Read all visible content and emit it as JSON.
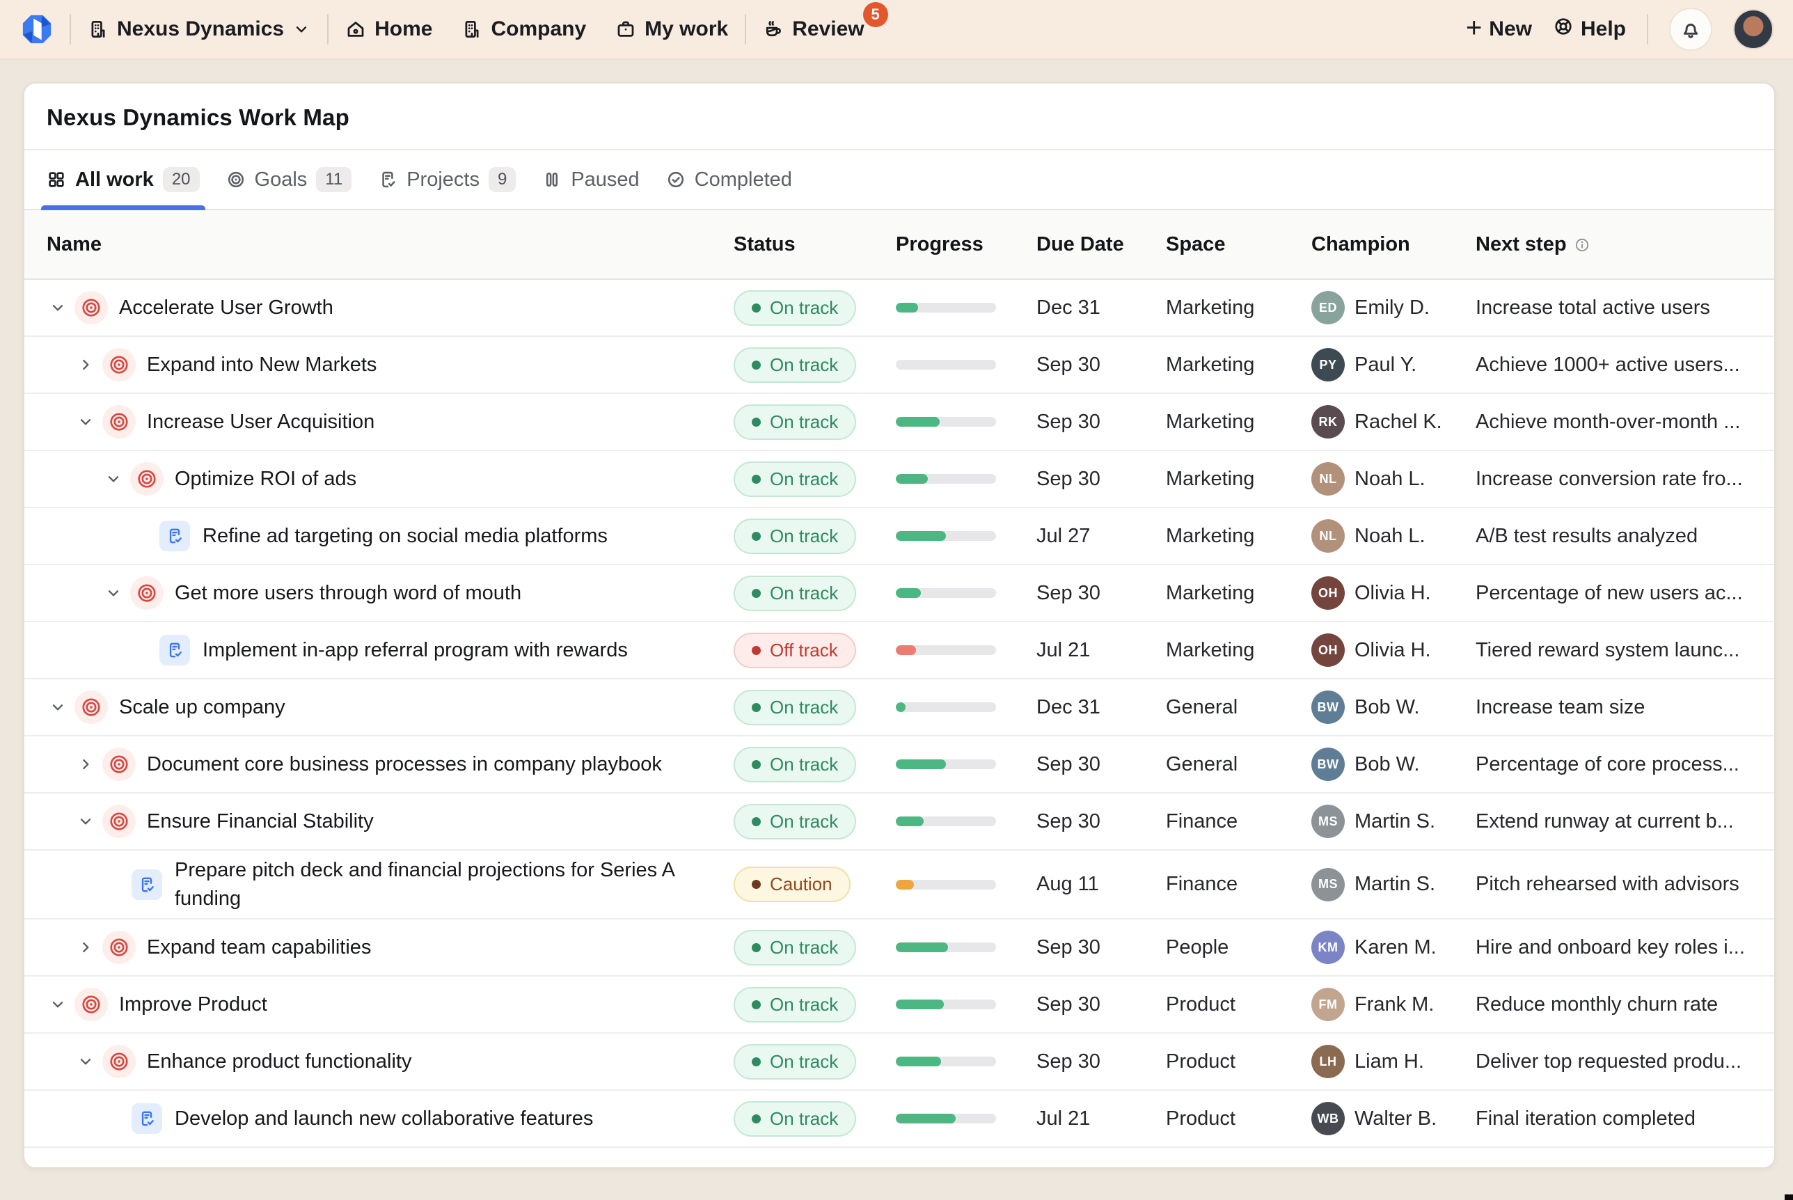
{
  "nav": {
    "brand": "Nexus Dynamics",
    "items": [
      {
        "label": "Home",
        "icon": "home-icon"
      },
      {
        "label": "Company",
        "icon": "building-icon"
      },
      {
        "label": "My work",
        "icon": "briefcase-icon"
      }
    ],
    "review": {
      "label": "Review",
      "badge": "5",
      "icon": "coffee-icon"
    },
    "new_label": "New",
    "help_label": "Help"
  },
  "page": {
    "title": "Nexus Dynamics Work Map"
  },
  "tabs": [
    {
      "label": "All work",
      "count": "20",
      "icon": "grid-icon",
      "active": true
    },
    {
      "label": "Goals",
      "count": "11",
      "icon": "target-icon",
      "active": false
    },
    {
      "label": "Projects",
      "count": "9",
      "icon": "clipboard-icon",
      "active": false
    },
    {
      "label": "Paused",
      "count": null,
      "icon": "pause-icon",
      "active": false
    },
    {
      "label": "Completed",
      "count": null,
      "icon": "check-circle-icon",
      "active": false
    }
  ],
  "table": {
    "columns": [
      "Name",
      "Status",
      "Progress",
      "Due Date",
      "Space",
      "Champion",
      "Next step"
    ],
    "rows": [
      {
        "level": 0,
        "type": "goal",
        "chevron": "down",
        "name": "Accelerate User Growth",
        "status": "On track",
        "progress": 22,
        "due": "Dec 31",
        "space": "Marketing",
        "champion": "Emily D.",
        "avatar_color": "#87a39b",
        "next_step": "Increase total active users"
      },
      {
        "level": 1,
        "type": "goal",
        "chevron": "right",
        "name": "Expand into New Markets",
        "status": "On track",
        "progress": 0,
        "due": "Sep 30",
        "space": "Marketing",
        "champion": "Paul Y.",
        "avatar_color": "#3e4a52",
        "next_step": "Achieve 1000+ active users..."
      },
      {
        "level": 1,
        "type": "goal",
        "chevron": "down",
        "name": "Increase User Acquisition",
        "status": "On track",
        "progress": 44,
        "due": "Sep 30",
        "space": "Marketing",
        "champion": "Rachel K.",
        "avatar_color": "#5a4b50",
        "next_step": "Achieve month-over-month ..."
      },
      {
        "level": 2,
        "type": "goal",
        "chevron": "down",
        "name": "Optimize ROI of ads",
        "status": "On track",
        "progress": 32,
        "due": "Sep 30",
        "space": "Marketing",
        "champion": "Noah L.",
        "avatar_color": "#b2917a",
        "next_step": "Increase conversion rate fro..."
      },
      {
        "level": 3,
        "type": "project",
        "chevron": null,
        "name": "Refine ad targeting on social media platforms",
        "status": "On track",
        "progress": 50,
        "due": "Jul 27",
        "space": "Marketing",
        "champion": "Noah L.",
        "avatar_color": "#b2917a",
        "next_step": "A/B test results analyzed"
      },
      {
        "level": 2,
        "type": "goal",
        "chevron": "down",
        "name": "Get more users through word of mouth",
        "status": "On track",
        "progress": 25,
        "due": "Sep 30",
        "space": "Marketing",
        "champion": "Olivia H.",
        "avatar_color": "#74453d",
        "next_step": "Percentage of new users ac..."
      },
      {
        "level": 3,
        "type": "project",
        "chevron": null,
        "name": "Implement in-app referral program with rewards",
        "status": "Off track",
        "progress": 20,
        "due": "Jul 21",
        "space": "Marketing",
        "champion": "Olivia H.",
        "avatar_color": "#74453d",
        "next_step": "Tiered reward system launc..."
      },
      {
        "level": 0,
        "type": "goal",
        "chevron": "down",
        "name": "Scale up company",
        "status": "On track",
        "progress": 10,
        "due": "Dec 31",
        "space": "General",
        "champion": "Bob W.",
        "avatar_color": "#5f7d94",
        "next_step": "Increase team size"
      },
      {
        "level": 1,
        "type": "goal",
        "chevron": "right",
        "name": "Document core business processes in company playbook",
        "status": "On track",
        "progress": 50,
        "due": "Sep 30",
        "space": "General",
        "champion": "Bob W.",
        "avatar_color": "#5f7d94",
        "next_step": "Percentage of core process..."
      },
      {
        "level": 1,
        "type": "goal",
        "chevron": "down",
        "name": "Ensure Financial Stability",
        "status": "On track",
        "progress": 28,
        "due": "Sep 30",
        "space": "Finance",
        "champion": "Martin S.",
        "avatar_color": "#8d9296",
        "next_step": "Extend runway at current b..."
      },
      {
        "level": 2,
        "type": "project",
        "chevron": null,
        "name": "Prepare pitch deck and financial projections for Series A funding",
        "status": "Caution",
        "progress": 18,
        "due": "Aug 11",
        "space": "Finance",
        "champion": "Martin S.",
        "avatar_color": "#8d9296",
        "next_step": "Pitch rehearsed with advisors"
      },
      {
        "level": 1,
        "type": "goal",
        "chevron": "right",
        "name": "Expand team capabilities",
        "status": "On track",
        "progress": 52,
        "due": "Sep 30",
        "space": "People",
        "champion": "Karen M.",
        "avatar_color": "#7b84c4",
        "next_step": "Hire and onboard key roles i..."
      },
      {
        "level": 0,
        "type": "goal",
        "chevron": "down",
        "name": "Improve Product",
        "status": "On track",
        "progress": 48,
        "due": "Sep 30",
        "space": "Product",
        "champion": "Frank M.",
        "avatar_color": "#c2a58f",
        "next_step": "Reduce monthly churn rate"
      },
      {
        "level": 1,
        "type": "goal",
        "chevron": "down",
        "name": "Enhance product functionality",
        "status": "On track",
        "progress": 45,
        "due": "Sep 30",
        "space": "Product",
        "champion": "Liam H.",
        "avatar_color": "#8a6a50",
        "next_step": "Deliver top requested produ..."
      },
      {
        "level": 2,
        "type": "project",
        "chevron": null,
        "name": "Develop and launch new collaborative features",
        "status": "On track",
        "progress": 60,
        "due": "Jul 21",
        "space": "Product",
        "champion": "Walter B.",
        "avatar_color": "#474b51",
        "next_step": "Final iteration completed"
      }
    ]
  },
  "colors": {
    "accent_blue": "#4a6fe8",
    "on_track_green": "#2f8a62",
    "off_track_red": "#c03a30",
    "caution_brown": "#8f4a1f",
    "progress_green": "#4db784",
    "progress_red": "#ee7b70",
    "progress_amber": "#efa53f",
    "review_badge_orange": "#e2572b",
    "nav_bg": "#f8ece1",
    "page_bg": "#eee7dd"
  }
}
